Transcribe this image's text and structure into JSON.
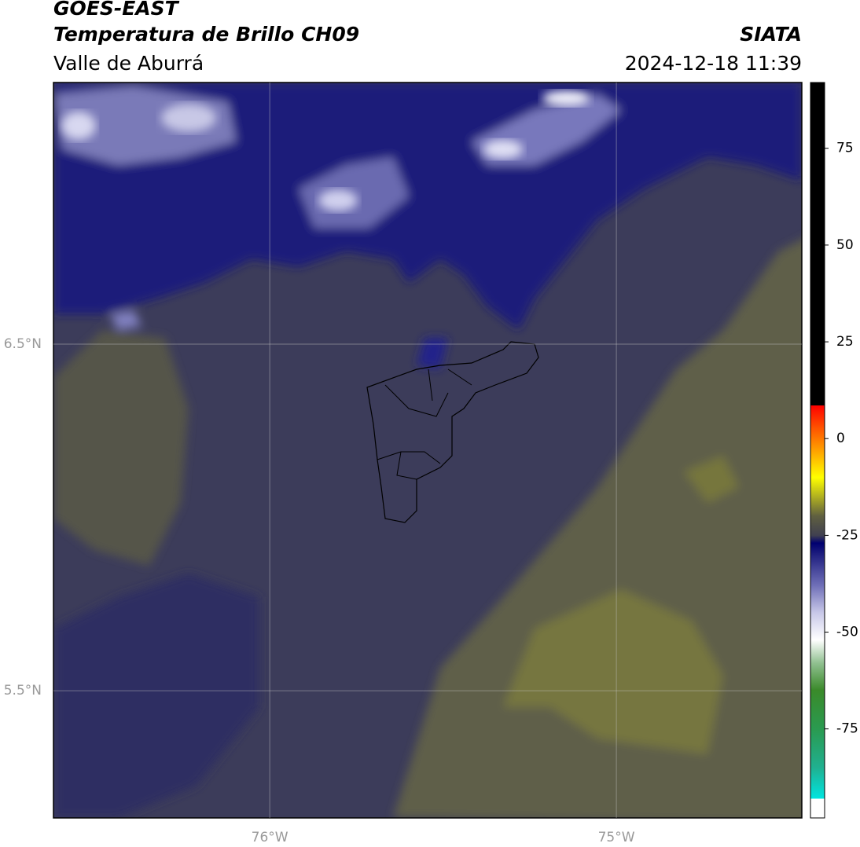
{
  "header": {
    "title": "GOES-EAST",
    "subtitle": "Temperatura de Brillo CH09",
    "region": "Valle de Aburrá",
    "source": "SIATA",
    "datetime": "2024-12-18 11:39"
  },
  "map": {
    "lonlim": [
      -76.624,
      -74.465
    ],
    "latlim": [
      5.133,
      7.255
    ],
    "lonticks": [
      {
        "value": -76,
        "label": "76°W"
      },
      {
        "value": -75,
        "label": "75°W"
      }
    ],
    "latticks": [
      {
        "value": 6.5,
        "label": "6.5°N"
      },
      {
        "value": 5.5,
        "label": "5.5°N"
      }
    ]
  },
  "colorbar": {
    "lim": [
      -98,
      92
    ],
    "ticks": [
      75,
      50,
      25,
      0,
      -25,
      -50,
      -75
    ],
    "stops": [
      {
        "value": -98,
        "color": "#ffffff"
      },
      {
        "value": -93,
        "color": "#ffffff"
      },
      {
        "value": -93,
        "color": "#00e5e0"
      },
      {
        "value": -85,
        "color": "#20b090"
      },
      {
        "value": -75,
        "color": "#2a9a50"
      },
      {
        "value": -65,
        "color": "#3a8a2a"
      },
      {
        "value": -58,
        "color": "#90c090"
      },
      {
        "value": -52,
        "color": "#ffffff"
      },
      {
        "value": -45,
        "color": "#c8c8e8"
      },
      {
        "value": -38,
        "color": "#7070b8"
      },
      {
        "value": -30,
        "color": "#202080"
      },
      {
        "value": -27,
        "color": "#000070"
      },
      {
        "value": -25,
        "color": "#404050"
      },
      {
        "value": -20,
        "color": "#606040"
      },
      {
        "value": -15,
        "color": "#b0b020"
      },
      {
        "value": -10,
        "color": "#ffff00"
      },
      {
        "value": -3,
        "color": "#ffa000"
      },
      {
        "value": 3,
        "color": "#ff5000"
      },
      {
        "value": 8.6,
        "color": "#ff0000"
      },
      {
        "value": 8.6,
        "color": "#000000"
      },
      {
        "value": 92,
        "color": "#000000"
      }
    ]
  }
}
